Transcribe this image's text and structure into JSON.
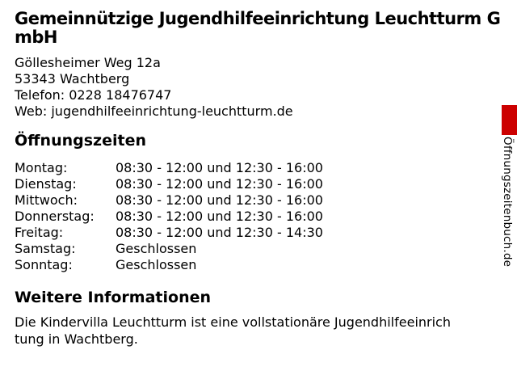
{
  "page": {
    "background_color": "#ffffff",
    "text_color": "#000000",
    "accent_color": "#cc0000"
  },
  "header": {
    "title": "Gemeinnützige Jugendhilfeeinrichtung Leuchtturm GmbH",
    "title_lines": [
      "Gemeinnützige Jugendhilfeeinrichtung Leuchtturm G",
      "mbH"
    ]
  },
  "contact": {
    "street": "Göllesheimer Weg 12a",
    "city": "53343 Wachtberg",
    "phone_line": "Telefon: 0228 18476747",
    "web_line": "Web: jugendhilfeeinrichtung-leuchtturm.de"
  },
  "hours": {
    "heading": "Öffnungszeiten",
    "rows": [
      {
        "day": "Montag:",
        "time": "08:30 - 12:00 und 12:30 - 16:00"
      },
      {
        "day": "Dienstag:",
        "time": "08:30 - 12:00 und 12:30 - 16:00"
      },
      {
        "day": "Mittwoch:",
        "time": "08:30 - 12:00 und 12:30 - 16:00"
      },
      {
        "day": "Donnerstag:",
        "time": "08:30 - 12:00 und 12:30 - 16:00"
      },
      {
        "day": "Freitag:",
        "time": "08:30 - 12:00 und 12:30 - 14:30"
      },
      {
        "day": "Samstag:",
        "time": "Geschlossen"
      },
      {
        "day": "Sonntag:",
        "time": "Geschlossen"
      }
    ]
  },
  "info": {
    "heading": "Weitere Informationen",
    "text": "Die Kindervilla Leuchtturm ist eine vollstationäre Jugendhilfeeinrichtung in Wachtberg.",
    "text_lines": [
      "Die Kindervilla Leuchtturm ist eine vollstationäre Jugendhilfeeinrich",
      "tung in Wachtberg."
    ]
  },
  "ribbon": {
    "site_name": "Öffnungszeitenbuch.de"
  }
}
